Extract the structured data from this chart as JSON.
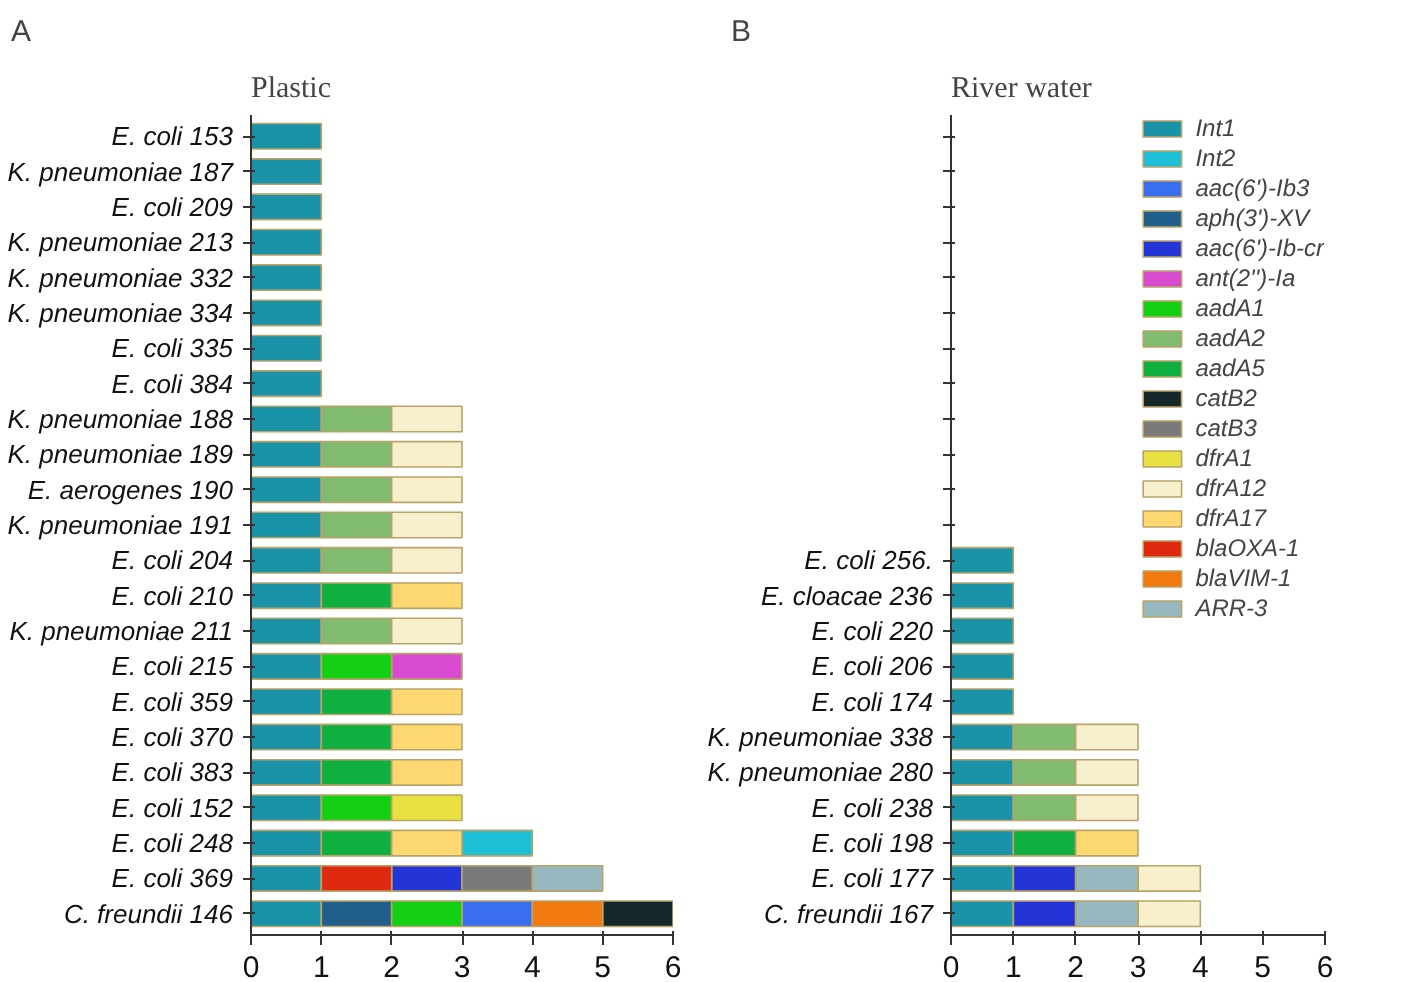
{
  "chart_data": [
    {
      "type": "bar",
      "orientation": "horizontal",
      "title": "Plastic",
      "annotations": [
        "A"
      ],
      "xlim": [
        0,
        6
      ],
      "xticks": [
        0,
        1,
        2,
        3,
        4,
        5,
        6
      ],
      "grid": false,
      "legend": false,
      "categories": [
        "E. coli 153",
        "K. pneumoniae 187",
        "E. coli 209",
        "K. pneumoniae 213",
        "K. pneumoniae 332",
        "K. pneumoniae 334",
        "E. coli 335",
        "E. coli 384",
        "K. pneumoniae 188",
        "K. pneumoniae 189",
        "E. aerogenes 190",
        "K. pneumoniae 191",
        "E. coli 204",
        "E. coli 210",
        "K. pneumoniae 211",
        "E. coli 215",
        "E. coli 359",
        "E. coli 370",
        "E. coli 383",
        "E. coli 152",
        "E. coli 248",
        "E. coli 369",
        "C. freundii 146"
      ],
      "series": [
        {
          "color": "#1a93a8",
          "values": [
            1,
            1,
            1,
            1,
            1,
            1,
            1,
            1,
            1,
            1,
            1,
            1,
            1,
            1,
            1,
            1,
            1,
            1,
            1,
            1,
            1,
            1,
            1
          ],
          "base": [
            0,
            0,
            0,
            0,
            0,
            0,
            0,
            0,
            0,
            0,
            0,
            0,
            0,
            0,
            0,
            0,
            0,
            0,
            0,
            0,
            0,
            0,
            0
          ]
        },
        {
          "color": "#1ec0d8",
          "values": [
            null,
            null,
            null,
            null,
            null,
            null,
            null,
            null,
            null,
            null,
            null,
            null,
            null,
            null,
            null,
            null,
            null,
            null,
            null,
            null,
            1,
            null,
            null
          ],
          "base": [
            null,
            null,
            null,
            null,
            null,
            null,
            null,
            null,
            null,
            null,
            null,
            null,
            null,
            null,
            null,
            null,
            null,
            null,
            null,
            null,
            3,
            null,
            null
          ]
        },
        {
          "color": "#3a6ef0",
          "values": [
            null,
            null,
            null,
            null,
            null,
            null,
            null,
            null,
            null,
            null,
            null,
            null,
            null,
            null,
            null,
            null,
            null,
            null,
            null,
            null,
            null,
            null,
            1
          ],
          "base": [
            null,
            null,
            null,
            null,
            null,
            null,
            null,
            null,
            null,
            null,
            null,
            null,
            null,
            null,
            null,
            null,
            null,
            null,
            null,
            null,
            null,
            null,
            3
          ]
        },
        {
          "color": "#1f5f8a",
          "values": [
            null,
            null,
            null,
            null,
            null,
            null,
            null,
            null,
            null,
            null,
            null,
            null,
            null,
            null,
            null,
            null,
            null,
            null,
            null,
            null,
            null,
            null,
            1
          ],
          "base": [
            null,
            null,
            null,
            null,
            null,
            null,
            null,
            null,
            null,
            null,
            null,
            null,
            null,
            null,
            null,
            null,
            null,
            null,
            null,
            null,
            null,
            null,
            1
          ]
        },
        {
          "color": "#2435d8",
          "values": [
            null,
            null,
            null,
            null,
            null,
            null,
            null,
            null,
            null,
            null,
            null,
            null,
            null,
            null,
            null,
            null,
            null,
            null,
            null,
            null,
            null,
            1,
            null
          ],
          "base": [
            null,
            null,
            null,
            null,
            null,
            null,
            null,
            null,
            null,
            null,
            null,
            null,
            null,
            null,
            null,
            null,
            null,
            null,
            null,
            null,
            null,
            2,
            null
          ]
        },
        {
          "color": "#d84ad0",
          "values": [
            null,
            null,
            null,
            null,
            null,
            null,
            null,
            null,
            null,
            null,
            null,
            null,
            null,
            null,
            null,
            1,
            null,
            null,
            null,
            null,
            null,
            null,
            null
          ],
          "base": [
            null,
            null,
            null,
            null,
            null,
            null,
            null,
            null,
            null,
            null,
            null,
            null,
            null,
            null,
            null,
            2,
            null,
            null,
            null,
            null,
            null,
            null,
            null
          ]
        },
        {
          "color": "#14d014",
          "values": [
            null,
            null,
            null,
            null,
            null,
            null,
            null,
            null,
            null,
            null,
            null,
            null,
            null,
            null,
            null,
            1,
            null,
            null,
            null,
            1,
            null,
            null,
            1
          ],
          "base": [
            null,
            null,
            null,
            null,
            null,
            null,
            null,
            null,
            null,
            null,
            null,
            null,
            null,
            null,
            null,
            1,
            null,
            null,
            null,
            1,
            null,
            null,
            2
          ]
        },
        {
          "color": "#80bb70",
          "values": [
            null,
            null,
            null,
            null,
            null,
            null,
            null,
            null,
            1,
            1,
            1,
            1,
            1,
            null,
            1,
            null,
            null,
            null,
            null,
            null,
            null,
            null,
            null
          ],
          "base": [
            null,
            null,
            null,
            null,
            null,
            null,
            null,
            null,
            1,
            1,
            1,
            1,
            1,
            null,
            1,
            null,
            null,
            null,
            null,
            null,
            null,
            null,
            null
          ]
        },
        {
          "color": "#10b040",
          "values": [
            null,
            null,
            null,
            null,
            null,
            null,
            null,
            null,
            null,
            null,
            null,
            null,
            null,
            1,
            null,
            null,
            1,
            1,
            1,
            null,
            1,
            null,
            null
          ],
          "base": [
            null,
            null,
            null,
            null,
            null,
            null,
            null,
            null,
            null,
            null,
            null,
            null,
            null,
            1,
            null,
            null,
            1,
            1,
            1,
            null,
            1,
            null,
            null
          ]
        },
        {
          "color": "#14282c",
          "values": [
            null,
            null,
            null,
            null,
            null,
            null,
            null,
            null,
            null,
            null,
            null,
            null,
            null,
            null,
            null,
            null,
            null,
            null,
            null,
            null,
            null,
            null,
            1
          ],
          "base": [
            null,
            null,
            null,
            null,
            null,
            null,
            null,
            null,
            null,
            null,
            null,
            null,
            null,
            null,
            null,
            null,
            null,
            null,
            null,
            null,
            null,
            null,
            5
          ]
        },
        {
          "color": "#7a7a7a",
          "values": [
            null,
            null,
            null,
            null,
            null,
            null,
            null,
            null,
            null,
            null,
            null,
            null,
            null,
            null,
            null,
            null,
            null,
            null,
            null,
            null,
            null,
            1,
            null
          ],
          "base": [
            null,
            null,
            null,
            null,
            null,
            null,
            null,
            null,
            null,
            null,
            null,
            null,
            null,
            null,
            null,
            null,
            null,
            null,
            null,
            null,
            null,
            3,
            null
          ]
        },
        {
          "color": "#e8e040",
          "values": [
            null,
            null,
            null,
            null,
            null,
            null,
            null,
            null,
            null,
            null,
            null,
            null,
            null,
            null,
            null,
            null,
            null,
            null,
            null,
            1,
            null,
            null,
            null
          ],
          "base": [
            null,
            null,
            null,
            null,
            null,
            null,
            null,
            null,
            null,
            null,
            null,
            null,
            null,
            null,
            null,
            null,
            null,
            null,
            null,
            2,
            null,
            null,
            null
          ]
        },
        {
          "color": "#f8efcc",
          "values": [
            null,
            null,
            null,
            null,
            null,
            null,
            null,
            null,
            1,
            1,
            1,
            1,
            1,
            null,
            1,
            null,
            null,
            null,
            null,
            null,
            null,
            null,
            null
          ],
          "base": [
            null,
            null,
            null,
            null,
            null,
            null,
            null,
            null,
            2,
            2,
            2,
            2,
            2,
            null,
            2,
            null,
            null,
            null,
            null,
            null,
            null,
            null,
            null
          ]
        },
        {
          "color": "#fdd870",
          "values": [
            null,
            null,
            null,
            null,
            null,
            null,
            null,
            null,
            null,
            null,
            null,
            null,
            null,
            1,
            null,
            null,
            1,
            1,
            1,
            null,
            1,
            null,
            null
          ],
          "base": [
            null,
            null,
            null,
            null,
            null,
            null,
            null,
            null,
            null,
            null,
            null,
            null,
            null,
            2,
            null,
            null,
            2,
            2,
            2,
            null,
            2,
            null,
            null
          ]
        },
        {
          "color": "#e02a10",
          "values": [
            null,
            null,
            null,
            null,
            null,
            null,
            null,
            null,
            null,
            null,
            null,
            null,
            null,
            null,
            null,
            null,
            null,
            null,
            null,
            null,
            null,
            1,
            null
          ],
          "base": [
            null,
            null,
            null,
            null,
            null,
            null,
            null,
            null,
            null,
            null,
            null,
            null,
            null,
            null,
            null,
            null,
            null,
            null,
            null,
            null,
            null,
            1,
            null
          ]
        },
        {
          "color": "#f07a10",
          "values": [
            null,
            null,
            null,
            null,
            null,
            null,
            null,
            null,
            null,
            null,
            null,
            null,
            null,
            null,
            null,
            null,
            null,
            null,
            null,
            null,
            null,
            null,
            1
          ],
          "base": [
            null,
            null,
            null,
            null,
            null,
            null,
            null,
            null,
            null,
            null,
            null,
            null,
            null,
            null,
            null,
            null,
            null,
            null,
            null,
            null,
            null,
            null,
            4
          ]
        },
        {
          "color": "#98b8c0",
          "values": [
            null,
            null,
            null,
            null,
            null,
            null,
            null,
            null,
            null,
            null,
            null,
            null,
            null,
            null,
            null,
            null,
            null,
            null,
            null,
            null,
            null,
            1,
            null
          ],
          "base": [
            null,
            null,
            null,
            null,
            null,
            null,
            null,
            null,
            null,
            null,
            null,
            null,
            null,
            null,
            null,
            null,
            null,
            null,
            null,
            null,
            null,
            4,
            null
          ]
        }
      ]
    },
    {
      "type": "bar",
      "orientation": "horizontal",
      "title": "River water",
      "annotations": [
        "B"
      ],
      "xlim": [
        0,
        6
      ],
      "xticks": [
        0,
        1,
        2,
        3,
        4,
        5,
        6
      ],
      "grid": false,
      "legend": "top right",
      "categories": [
        null,
        null,
        null,
        null,
        null,
        null,
        null,
        null,
        null,
        null,
        null,
        null,
        "E. coli 256.",
        "E. cloacae 236",
        "E. coli 220",
        "E. coli 206",
        "E. coli 174",
        "K. pneumoniae 338",
        "K. pneumoniae 280",
        "E. coli 238",
        "E. coli 198",
        "E. coli 177",
        "C. freundii 167"
      ],
      "series": [
        {
          "name": "Int1",
          "color": "#1a93a8",
          "values": [
            null,
            null,
            null,
            null,
            null,
            null,
            null,
            null,
            null,
            null,
            null,
            null,
            1,
            1,
            1,
            1,
            1,
            1,
            1,
            1,
            1,
            1,
            1
          ],
          "base": [
            null,
            null,
            null,
            null,
            null,
            null,
            null,
            null,
            null,
            null,
            null,
            null,
            0,
            0,
            0,
            0,
            0,
            0,
            0,
            0,
            0,
            0,
            0
          ]
        },
        {
          "name": "Int2",
          "color": "#1ec0d8",
          "values": [
            null,
            null,
            null,
            null,
            null,
            null,
            null,
            null,
            null,
            null,
            null,
            null,
            null,
            null,
            null,
            null,
            null,
            null,
            null,
            null,
            null,
            null,
            null
          ]
        },
        {
          "name": "aac(6')-Ib3",
          "color": "#3a6ef0",
          "values": [
            null,
            null,
            null,
            null,
            null,
            null,
            null,
            null,
            null,
            null,
            null,
            null,
            null,
            null,
            null,
            null,
            null,
            null,
            null,
            null,
            null,
            null,
            null
          ]
        },
        {
          "name": "aph(3')-XV",
          "color": "#1f5f8a",
          "values": [
            null,
            null,
            null,
            null,
            null,
            null,
            null,
            null,
            null,
            null,
            null,
            null,
            null,
            null,
            null,
            null,
            null,
            null,
            null,
            null,
            null,
            null,
            null
          ]
        },
        {
          "name": "aac(6')-Ib-cr",
          "color": "#2435d8",
          "values": [
            null,
            null,
            null,
            null,
            null,
            null,
            null,
            null,
            null,
            null,
            null,
            null,
            null,
            null,
            null,
            null,
            null,
            null,
            null,
            null,
            null,
            1,
            1
          ],
          "base": [
            null,
            null,
            null,
            null,
            null,
            null,
            null,
            null,
            null,
            null,
            null,
            null,
            null,
            null,
            null,
            null,
            null,
            null,
            null,
            null,
            null,
            1,
            1
          ]
        },
        {
          "name": "ant(2'')-Ia",
          "color": "#d84ad0",
          "values": [
            null,
            null,
            null,
            null,
            null,
            null,
            null,
            null,
            null,
            null,
            null,
            null,
            null,
            null,
            null,
            null,
            null,
            null,
            null,
            null,
            null,
            null,
            null
          ]
        },
        {
          "name": "aadA1",
          "color": "#14d014",
          "values": [
            null,
            null,
            null,
            null,
            null,
            null,
            null,
            null,
            null,
            null,
            null,
            null,
            null,
            null,
            null,
            null,
            null,
            null,
            null,
            null,
            null,
            null,
            null
          ]
        },
        {
          "name": "aadA2",
          "color": "#80bb70",
          "values": [
            null,
            null,
            null,
            null,
            null,
            null,
            null,
            null,
            null,
            null,
            null,
            null,
            null,
            null,
            null,
            null,
            null,
            1,
            1,
            1,
            null,
            null,
            null
          ],
          "base": [
            null,
            null,
            null,
            null,
            null,
            null,
            null,
            null,
            null,
            null,
            null,
            null,
            null,
            null,
            null,
            null,
            null,
            1,
            1,
            1,
            null,
            null,
            null
          ]
        },
        {
          "name": "aadA5",
          "color": "#10b040",
          "values": [
            null,
            null,
            null,
            null,
            null,
            null,
            null,
            null,
            null,
            null,
            null,
            null,
            null,
            null,
            null,
            null,
            null,
            null,
            null,
            null,
            1,
            null,
            null
          ],
          "base": [
            null,
            null,
            null,
            null,
            null,
            null,
            null,
            null,
            null,
            null,
            null,
            null,
            null,
            null,
            null,
            null,
            null,
            null,
            null,
            null,
            1,
            null,
            null
          ]
        },
        {
          "name": "catB2",
          "color": "#14282c",
          "values": [
            null,
            null,
            null,
            null,
            null,
            null,
            null,
            null,
            null,
            null,
            null,
            null,
            null,
            null,
            null,
            null,
            null,
            null,
            null,
            null,
            null,
            null,
            null
          ]
        },
        {
          "name": "catB3",
          "color": "#7a7a7a",
          "values": [
            null,
            null,
            null,
            null,
            null,
            null,
            null,
            null,
            null,
            null,
            null,
            null,
            null,
            null,
            null,
            null,
            null,
            null,
            null,
            null,
            null,
            null,
            null
          ]
        },
        {
          "name": "dfrA1",
          "color": "#e8e040",
          "values": [
            null,
            null,
            null,
            null,
            null,
            null,
            null,
            null,
            null,
            null,
            null,
            null,
            null,
            null,
            null,
            null,
            null,
            null,
            null,
            null,
            null,
            null,
            null
          ]
        },
        {
          "name": "dfrA12",
          "color": "#f8efcc",
          "values": [
            null,
            null,
            null,
            null,
            null,
            null,
            null,
            null,
            null,
            null,
            null,
            null,
            null,
            null,
            null,
            null,
            null,
            1,
            1,
            1,
            null,
            1,
            1
          ],
          "base": [
            null,
            null,
            null,
            null,
            null,
            null,
            null,
            null,
            null,
            null,
            null,
            null,
            null,
            null,
            null,
            null,
            null,
            2,
            2,
            2,
            null,
            3,
            3
          ]
        },
        {
          "name": "dfrA17",
          "color": "#fdd870",
          "values": [
            null,
            null,
            null,
            null,
            null,
            null,
            null,
            null,
            null,
            null,
            null,
            null,
            null,
            null,
            null,
            null,
            null,
            null,
            null,
            null,
            1,
            null,
            null
          ],
          "base": [
            null,
            null,
            null,
            null,
            null,
            null,
            null,
            null,
            null,
            null,
            null,
            null,
            null,
            null,
            null,
            null,
            null,
            null,
            null,
            null,
            2,
            null,
            null
          ]
        },
        {
          "name": "blaOXA-1",
          "color": "#e02a10",
          "values": [
            null,
            null,
            null,
            null,
            null,
            null,
            null,
            null,
            null,
            null,
            null,
            null,
            null,
            null,
            null,
            null,
            null,
            null,
            null,
            null,
            null,
            null,
            null
          ]
        },
        {
          "name": "blaVIM-1",
          "color": "#f07a10",
          "values": [
            null,
            null,
            null,
            null,
            null,
            null,
            null,
            null,
            null,
            null,
            null,
            null,
            null,
            null,
            null,
            null,
            null,
            null,
            null,
            null,
            null,
            null,
            null
          ]
        },
        {
          "name": "ARR-3",
          "color": "#98b8c0",
          "values": [
            null,
            null,
            null,
            null,
            null,
            null,
            null,
            null,
            null,
            null,
            null,
            null,
            null,
            null,
            null,
            null,
            null,
            null,
            null,
            null,
            null,
            1,
            1
          ],
          "base": [
            null,
            null,
            null,
            null,
            null,
            null,
            null,
            null,
            null,
            null,
            null,
            null,
            null,
            null,
            null,
            null,
            null,
            null,
            null,
            null,
            null,
            2,
            2
          ]
        }
      ]
    }
  ]
}
